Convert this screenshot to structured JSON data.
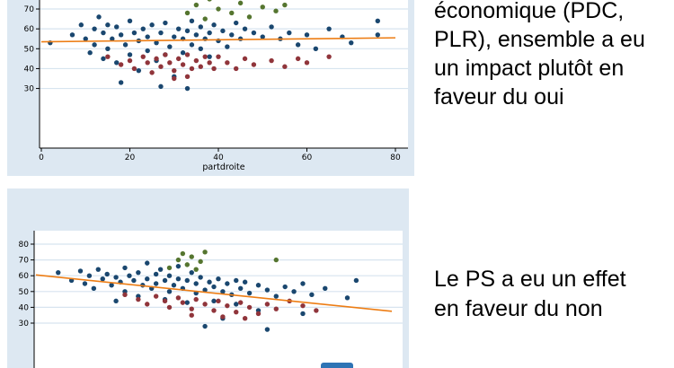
{
  "captions": {
    "top": {
      "lines": [
        "économique (PDC,",
        "PLR), ensemble a eu",
        "un impact plutôt en",
        "faveur du oui"
      ]
    },
    "bottom": {
      "lines": [
        "Le PS a eu un effet",
        "en faveur du non"
      ]
    }
  },
  "colors": {
    "chart_background": "#dde8f2",
    "plot_background": "#ffffff",
    "gridline": "#d7e4ef",
    "axis": "#000000",
    "text": "#000000",
    "navy": "#1a476f",
    "maroon": "#90353b",
    "green": "#55752f",
    "trend_orange": "#ed7d14",
    "blue_bar": "#2e74b5"
  },
  "chart_data": [
    {
      "id": "top",
      "type": "scatter",
      "title": "",
      "xlabel": "partdroite",
      "ylabel": "",
      "xlim": [
        0,
        80
      ],
      "xticks": [
        0,
        20,
        40,
        60,
        80
      ],
      "yticks": [
        30,
        40,
        50,
        60,
        70
      ],
      "grid": true,
      "legend": "none",
      "series": [
        {
          "name": "navy-points",
          "color": "#1a476f",
          "points": [
            [
              2,
              53
            ],
            [
              7,
              57
            ],
            [
              9,
              62
            ],
            [
              10,
              55
            ],
            [
              11,
              48
            ],
            [
              12,
              60
            ],
            [
              12,
              52
            ],
            [
              13,
              66
            ],
            [
              14,
              45
            ],
            [
              14,
              58
            ],
            [
              15,
              62
            ],
            [
              15,
              50
            ],
            [
              16,
              55
            ],
            [
              17,
              61
            ],
            [
              17,
              43
            ],
            [
              18,
              57
            ],
            [
              18,
              33
            ],
            [
              19,
              52
            ],
            [
              20,
              64
            ],
            [
              20,
              47
            ],
            [
              21,
              58
            ],
            [
              22,
              39
            ],
            [
              22,
              54
            ],
            [
              23,
              60
            ],
            [
              24,
              49
            ],
            [
              24,
              56
            ],
            [
              25,
              62
            ],
            [
              26,
              44
            ],
            [
              26,
              53
            ],
            [
              27,
              58
            ],
            [
              27,
              31
            ],
            [
              28,
              47
            ],
            [
              28,
              63
            ],
            [
              29,
              51
            ],
            [
              30,
              56
            ],
            [
              30,
              36
            ],
            [
              31,
              60
            ],
            [
              32,
              48
            ],
            [
              32,
              55
            ],
            [
              33,
              59
            ],
            [
              33,
              30
            ],
            [
              34,
              52
            ],
            [
              34,
              64
            ],
            [
              35,
              57
            ],
            [
              36,
              50
            ],
            [
              36,
              61
            ],
            [
              37,
              55
            ],
            [
              38,
              58
            ],
            [
              38,
              46
            ],
            [
              39,
              62
            ],
            [
              40,
              54
            ],
            [
              41,
              59
            ],
            [
              42,
              51
            ],
            [
              43,
              57
            ],
            [
              44,
              63
            ],
            [
              45,
              55
            ],
            [
              46,
              60
            ],
            [
              48,
              58
            ],
            [
              50,
              56
            ],
            [
              52,
              61
            ],
            [
              54,
              55
            ],
            [
              56,
              58
            ],
            [
              58,
              52
            ],
            [
              60,
              57
            ],
            [
              62,
              50
            ],
            [
              65,
              60
            ],
            [
              68,
              56
            ],
            [
              70,
              53
            ],
            [
              76,
              64
            ],
            [
              76,
              57
            ]
          ]
        },
        {
          "name": "maroon-points",
          "color": "#90353b",
          "points": [
            [
              15,
              46
            ],
            [
              18,
              42
            ],
            [
              20,
              44
            ],
            [
              21,
              40
            ],
            [
              23,
              46
            ],
            [
              24,
              43
            ],
            [
              25,
              38
            ],
            [
              26,
              45
            ],
            [
              27,
              41
            ],
            [
              28,
              47
            ],
            [
              29,
              43
            ],
            [
              30,
              39
            ],
            [
              30,
              35
            ],
            [
              31,
              45
            ],
            [
              32,
              42
            ],
            [
              33,
              47
            ],
            [
              33,
              36
            ],
            [
              34,
              40
            ],
            [
              35,
              44
            ],
            [
              36,
              41
            ],
            [
              37,
              46
            ],
            [
              38,
              43
            ],
            [
              39,
              40
            ],
            [
              40,
              46
            ],
            [
              42,
              43
            ],
            [
              44,
              40
            ],
            [
              46,
              45
            ],
            [
              48,
              42
            ],
            [
              52,
              44
            ],
            [
              55,
              41
            ],
            [
              58,
              45
            ],
            [
              60,
              43
            ],
            [
              65,
              46
            ]
          ]
        },
        {
          "name": "green-points",
          "color": "#55752f",
          "points": [
            [
              33,
              68
            ],
            [
              35,
              72
            ],
            [
              37,
              65
            ],
            [
              38,
              75
            ],
            [
              40,
              70
            ],
            [
              41,
              77
            ],
            [
              43,
              68
            ],
            [
              45,
              73
            ],
            [
              47,
              66
            ],
            [
              50,
              71
            ],
            [
              53,
              69
            ],
            [
              55,
              72
            ]
          ]
        }
      ],
      "trendline": {
        "color": "#ed7d14",
        "from": [
          0,
          53.5
        ],
        "to": [
          80,
          55.5
        ]
      }
    },
    {
      "id": "bottom",
      "type": "scatter",
      "title": "",
      "xlabel": "",
      "ylabel": "",
      "xlim": [
        0,
        80
      ],
      "xticks": [],
      "yticks": [
        30,
        40,
        50,
        60,
        70,
        80
      ],
      "grid": true,
      "legend": "none",
      "series": [
        {
          "name": "navy-points",
          "color": "#1a476f",
          "points": [
            [
              5,
              62
            ],
            [
              8,
              57
            ],
            [
              10,
              63
            ],
            [
              11,
              55
            ],
            [
              12,
              60
            ],
            [
              13,
              52
            ],
            [
              14,
              64
            ],
            [
              15,
              58
            ],
            [
              16,
              61
            ],
            [
              17,
              54
            ],
            [
              18,
              59
            ],
            [
              18,
              44
            ],
            [
              19,
              56
            ],
            [
              20,
              65
            ],
            [
              20,
              50
            ],
            [
              21,
              60
            ],
            [
              22,
              57
            ],
            [
              23,
              62
            ],
            [
              23,
              47
            ],
            [
              24,
              54
            ],
            [
              25,
              68
            ],
            [
              25,
              58
            ],
            [
              26,
              52
            ],
            [
              27,
              61
            ],
            [
              27,
              55
            ],
            [
              28,
              64
            ],
            [
              29,
              57
            ],
            [
              29,
              45
            ],
            [
              30,
              50
            ],
            [
              30,
              60
            ],
            [
              31,
              54
            ],
            [
              32,
              58
            ],
            [
              32,
              66
            ],
            [
              33,
              52
            ],
            [
              34,
              57
            ],
            [
              34,
              43
            ],
            [
              35,
              62
            ],
            [
              36,
              49
            ],
            [
              36,
              55
            ],
            [
              37,
              59
            ],
            [
              38,
              51
            ],
            [
              38,
              28
            ],
            [
              39,
              56
            ],
            [
              40,
              44
            ],
            [
              40,
              53
            ],
            [
              41,
              58
            ],
            [
              42,
              33
            ],
            [
              42,
              50
            ],
            [
              43,
              55
            ],
            [
              44,
              48
            ],
            [
              45,
              42
            ],
            [
              45,
              57
            ],
            [
              46,
              52
            ],
            [
              47,
              56
            ],
            [
              48,
              49
            ],
            [
              50,
              38
            ],
            [
              50,
              54
            ],
            [
              52,
              26
            ],
            [
              52,
              51
            ],
            [
              54,
              47
            ],
            [
              56,
              53
            ],
            [
              58,
              50
            ],
            [
              60,
              36
            ],
            [
              60,
              55
            ],
            [
              62,
              48
            ],
            [
              65,
              52
            ],
            [
              70,
              46
            ],
            [
              72,
              57
            ]
          ]
        },
        {
          "name": "maroon-points",
          "color": "#90353b",
          "points": [
            [
              20,
              48
            ],
            [
              23,
              45
            ],
            [
              25,
              42
            ],
            [
              27,
              47
            ],
            [
              29,
              44
            ],
            [
              30,
              40
            ],
            [
              32,
              46
            ],
            [
              33,
              43
            ],
            [
              35,
              39
            ],
            [
              35,
              35
            ],
            [
              36,
              45
            ],
            [
              38,
              42
            ],
            [
              40,
              38
            ],
            [
              41,
              44
            ],
            [
              42,
              34
            ],
            [
              43,
              41
            ],
            [
              45,
              37
            ],
            [
              46,
              43
            ],
            [
              47,
              33
            ],
            [
              48,
              40
            ],
            [
              50,
              36
            ],
            [
              52,
              42
            ],
            [
              54,
              39
            ],
            [
              57,
              44
            ],
            [
              60,
              41
            ],
            [
              63,
              38
            ]
          ]
        },
        {
          "name": "green-points",
          "color": "#55752f",
          "points": [
            [
              30,
              65
            ],
            [
              32,
              70
            ],
            [
              33,
              74
            ],
            [
              34,
              67
            ],
            [
              35,
              72
            ],
            [
              36,
              64
            ],
            [
              37,
              69
            ],
            [
              38,
              75
            ],
            [
              54,
              70
            ]
          ]
        }
      ],
      "trendline": {
        "color": "#ed7d14",
        "from": [
          0,
          60.5
        ],
        "to": [
          80,
          37.5
        ]
      }
    }
  ]
}
